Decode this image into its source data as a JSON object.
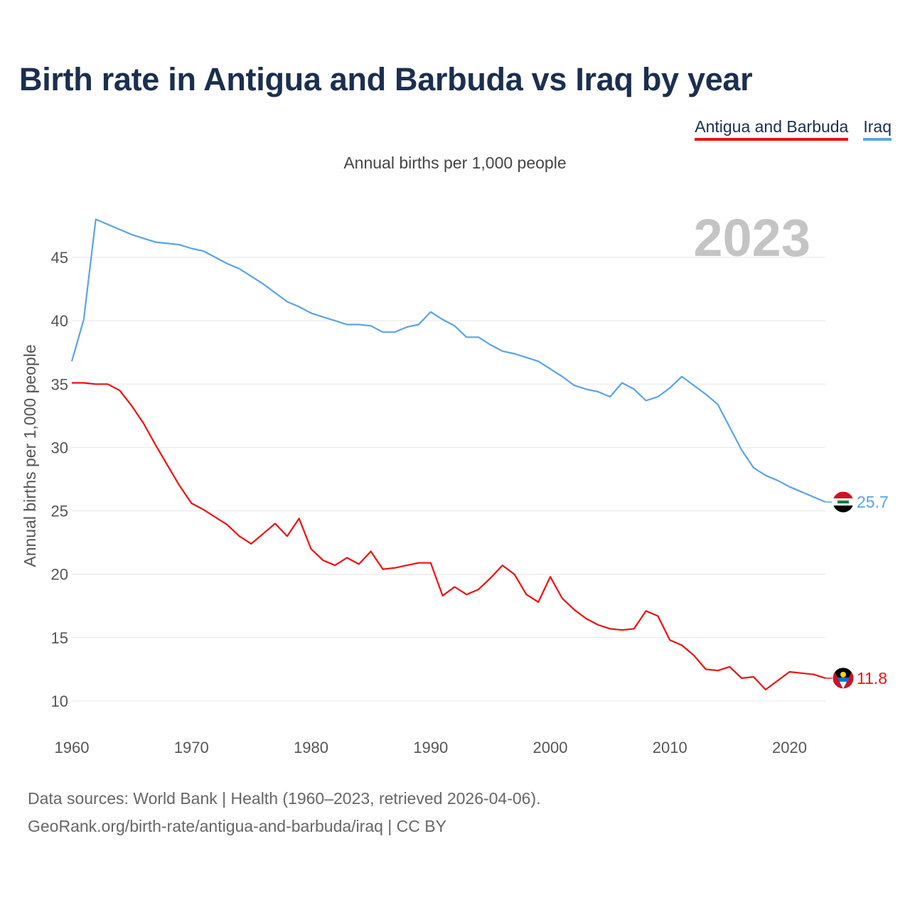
{
  "title": "Birth rate in Antigua and Barbuda vs Iraq by year",
  "subtitle": "Annual births per 1,000 people",
  "legend": [
    {
      "label": "Antigua and Barbuda",
      "color": "#ee1111"
    },
    {
      "label": "Iraq",
      "color": "#5ba3e6"
    }
  ],
  "footer": {
    "line1": "Data sources: World Bank | Health (1960–2023, retrieved 2026-04-06).",
    "line2": "GeoRank.org/birth-rate/antigua-and-barbuda/iraq | CC BY"
  },
  "chart_data": {
    "type": "line",
    "title": "Birth rate in Antigua and Barbuda vs Iraq by year",
    "ylabel": "Annual births per 1,000 people",
    "xlabel": "",
    "year_label": "2023",
    "xlim": [
      1960,
      2023
    ],
    "ylim": [
      8,
      48.5
    ],
    "x_ticks": [
      "1960",
      "1970",
      "1980",
      "1990",
      "2000",
      "2010",
      "2020"
    ],
    "y_ticks": [
      "10",
      "15",
      "20",
      "25",
      "30",
      "35",
      "40",
      "45"
    ],
    "grid": true,
    "x": [
      1960,
      1961,
      1962,
      1963,
      1964,
      1965,
      1966,
      1967,
      1968,
      1969,
      1970,
      1971,
      1972,
      1973,
      1974,
      1975,
      1976,
      1977,
      1978,
      1979,
      1980,
      1981,
      1982,
      1983,
      1984,
      1985,
      1986,
      1987,
      1988,
      1989,
      1990,
      1991,
      1992,
      1993,
      1994,
      1995,
      1996,
      1997,
      1998,
      1999,
      2000,
      2001,
      2002,
      2003,
      2004,
      2005,
      2006,
      2007,
      2008,
      2009,
      2010,
      2011,
      2012,
      2013,
      2014,
      2015,
      2016,
      2017,
      2018,
      2019,
      2020,
      2021,
      2022,
      2023
    ],
    "series": [
      {
        "name": "Iraq",
        "color": "#5ba3e6",
        "end_label": "25.7",
        "values": [
          36.8,
          40.1,
          48.0,
          47.6,
          47.2,
          46.8,
          46.5,
          46.2,
          46.1,
          46.0,
          45.7,
          45.5,
          45.0,
          44.5,
          44.1,
          43.5,
          42.9,
          42.2,
          41.5,
          41.1,
          40.6,
          40.3,
          40.0,
          39.7,
          39.7,
          39.6,
          39.1,
          39.1,
          39.5,
          39.7,
          40.7,
          40.1,
          39.6,
          38.7,
          38.7,
          38.1,
          37.6,
          37.4,
          37.1,
          36.8,
          36.2,
          35.6,
          34.9,
          34.6,
          34.4,
          34.0,
          35.1,
          34.6,
          33.7,
          34.0,
          34.7,
          35.6,
          34.9,
          34.2,
          33.4,
          31.6,
          29.8,
          28.4,
          27.8,
          27.4,
          26.9,
          26.5,
          26.1,
          25.7
        ]
      },
      {
        "name": "Antigua and Barbuda",
        "color": "#ee1111",
        "end_label": "11.8",
        "values": [
          35.1,
          35.1,
          35.0,
          35.0,
          34.5,
          33.3,
          31.9,
          30.2,
          28.6,
          27.0,
          25.6,
          25.1,
          24.5,
          23.9,
          23.0,
          22.4,
          23.2,
          24.0,
          23.0,
          24.4,
          22.0,
          21.1,
          20.7,
          21.3,
          20.8,
          21.8,
          20.4,
          20.5,
          20.7,
          20.9,
          20.9,
          18.3,
          19.0,
          18.4,
          18.8,
          19.7,
          20.7,
          20.0,
          18.4,
          17.8,
          19.8,
          18.1,
          17.2,
          16.5,
          16.0,
          15.7,
          15.6,
          15.7,
          17.1,
          16.7,
          14.8,
          14.4,
          13.6,
          12.5,
          12.4,
          12.7,
          11.8,
          11.9,
          10.9,
          11.6,
          12.3,
          12.2,
          12.1,
          11.8
        ]
      }
    ]
  }
}
